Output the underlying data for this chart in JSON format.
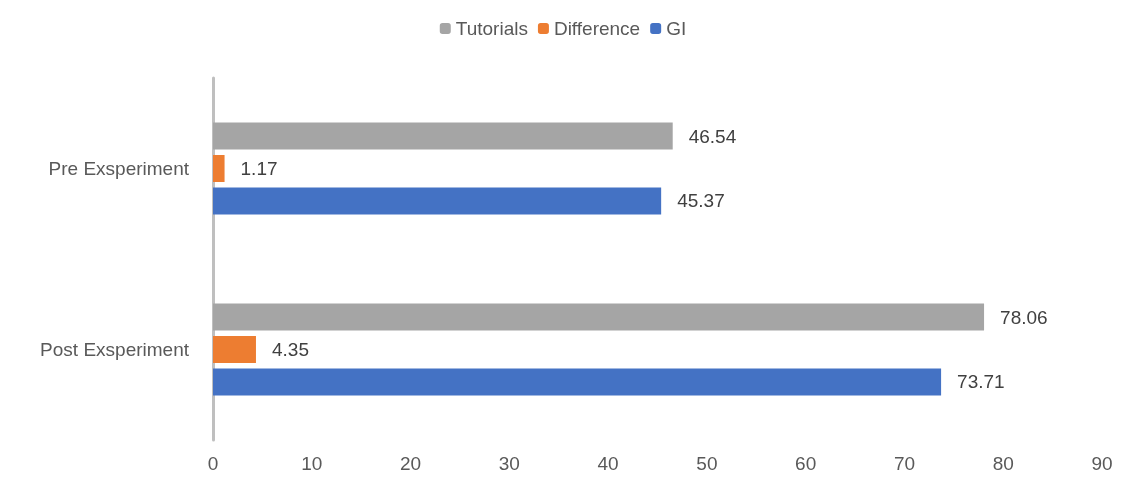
{
  "chart_data": {
    "type": "bar",
    "orientation": "horizontal",
    "categories": [
      "Pre Exsperiment",
      "Post Exsperiment"
    ],
    "series": [
      {
        "name": "Tutorials",
        "color": "#a5a5a5",
        "values": [
          46.54,
          78.06
        ]
      },
      {
        "name": "Difference",
        "color": "#ed7d31",
        "values": [
          1.17,
          4.35
        ]
      },
      {
        "name": "GI",
        "color": "#4472c4",
        "values": [
          45.37,
          73.71
        ]
      }
    ],
    "xlim": [
      0,
      90
    ],
    "xticks": [
      0,
      10,
      20,
      30,
      40,
      50,
      60,
      70,
      80,
      90
    ],
    "grid": false,
    "legend": "top",
    "data_labels": true
  }
}
